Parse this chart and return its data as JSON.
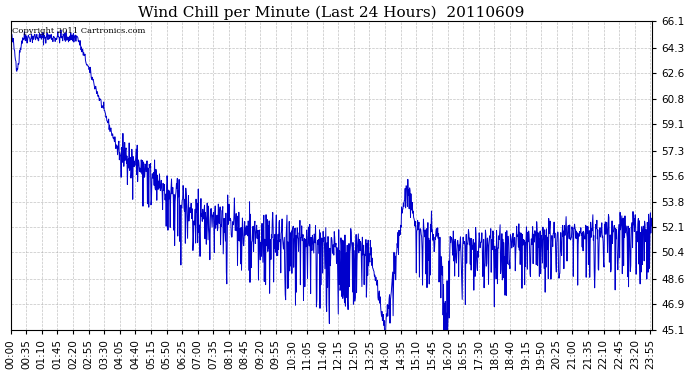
{
  "title": "Wind Chill per Minute (Last 24 Hours)  20110609",
  "copyright_text": "Copyright 2011 Cartronics.com",
  "line_color": "#0000cc",
  "background_color": "#ffffff",
  "grid_color": "#aaaaaa",
  "ylim": [
    45.1,
    66.1
  ],
  "yticks": [
    45.1,
    46.9,
    48.6,
    50.4,
    52.1,
    53.8,
    55.6,
    57.3,
    59.1,
    60.8,
    62.6,
    64.3,
    66.1
  ],
  "title_fontsize": 11,
  "tick_label_fontsize": 7.5,
  "copyright_fontsize": 6.0,
  "xtick_labels": [
    "00:00",
    "00:35",
    "01:10",
    "01:45",
    "02:20",
    "02:55",
    "03:30",
    "04:05",
    "04:40",
    "05:15",
    "05:50",
    "06:25",
    "07:00",
    "07:35",
    "08:10",
    "08:45",
    "09:20",
    "09:55",
    "10:30",
    "11:05",
    "11:40",
    "12:15",
    "12:50",
    "13:25",
    "14:00",
    "14:35",
    "15:10",
    "15:45",
    "16:20",
    "16:55",
    "17:30",
    "18:05",
    "18:40",
    "19:15",
    "19:50",
    "20:25",
    "21:00",
    "21:35",
    "22:10",
    "22:45",
    "23:20",
    "23:55"
  ],
  "num_points": 1440,
  "seed": 42,
  "figsize": [
    6.9,
    3.75
  ],
  "dpi": 100
}
